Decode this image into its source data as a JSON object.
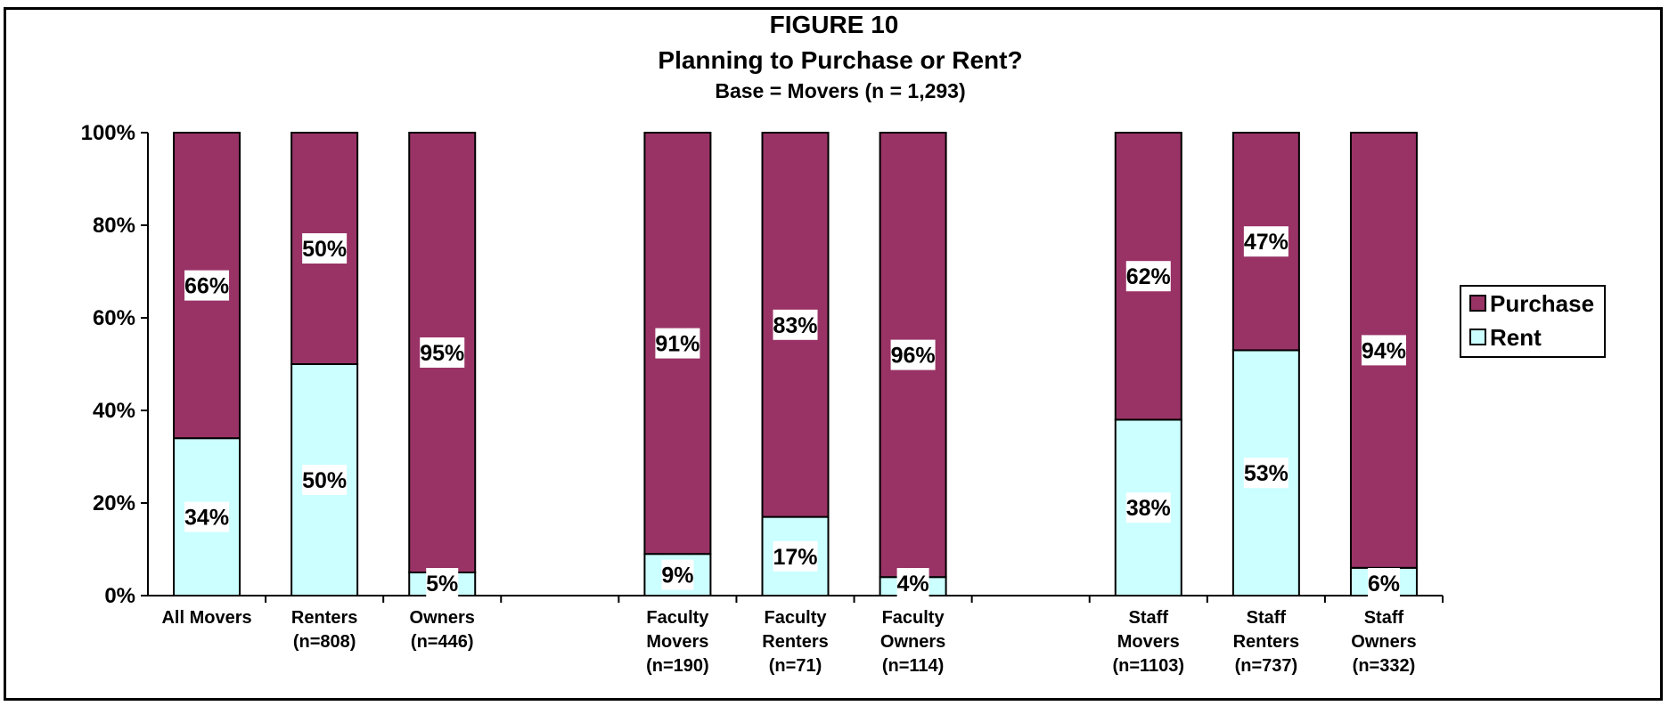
{
  "chart_data": {
    "type": "bar",
    "stacked": true,
    "title": "FIGURE 10",
    "subtitle": "Planning to Purchase or Rent?",
    "subtitle2": "Base = Movers (n = 1,293)",
    "ylim": [
      0,
      100
    ],
    "yticks": [
      "0%",
      "20%",
      "40%",
      "60%",
      "80%",
      "100%"
    ],
    "grid": false,
    "legend_position": "right",
    "categories": [
      [
        "All Movers"
      ],
      [
        "Renters",
        "(n=808)"
      ],
      [
        "Owners",
        "(n=446)"
      ],
      [
        "Faculty",
        "Movers",
        "(n=190)"
      ],
      [
        "Faculty",
        "Renters",
        "(n=71)"
      ],
      [
        "Faculty",
        "Owners",
        "(n=114)"
      ],
      [
        "Staff",
        "Movers",
        "(n=1103)"
      ],
      [
        "Staff",
        "Renters",
        "(n=737)"
      ],
      [
        "Staff",
        "Owners",
        "(n=332)"
      ]
    ],
    "slots": [
      1,
      2,
      3,
      5,
      6,
      7,
      9,
      10,
      11
    ],
    "slot_count": 11,
    "series": [
      {
        "name": "Rent",
        "color": "#ccffff",
        "values": [
          34,
          50,
          5,
          9,
          17,
          4,
          38,
          53,
          6
        ],
        "labels": [
          "34%",
          "50%",
          "5%",
          "9%",
          "17%",
          "4%",
          "38%",
          "53%",
          "6%"
        ]
      },
      {
        "name": "Purchase",
        "color": "#993366",
        "values": [
          66,
          50,
          95,
          91,
          83,
          96,
          62,
          47,
          94
        ],
        "labels": [
          "66%",
          "50%",
          "95%",
          "91%",
          "83%",
          "96%",
          "62%",
          "47%",
          "94%"
        ]
      }
    ],
    "legend": [
      "Purchase",
      "Rent"
    ]
  }
}
